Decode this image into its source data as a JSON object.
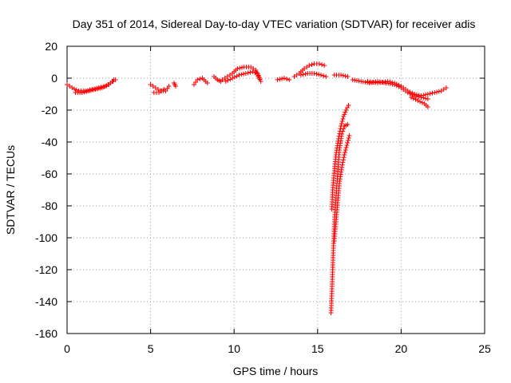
{
  "chart_data": {
    "type": "scatter",
    "title": "Day 351 of 2014, Sidereal Day-to-day VTEC variation (SDTVAR) for receiver adis",
    "xlabel": "GPS time / hours",
    "ylabel": "SDTVAR / TECUs",
    "xlim": [
      0,
      25
    ],
    "ylim": [
      -160,
      20
    ],
    "xticks": [
      "0",
      "5",
      "10",
      "15",
      "20",
      "25"
    ],
    "yticks": [
      "20",
      "0",
      "-20",
      "-40",
      "-60",
      "-80",
      "-100",
      "-120",
      "-140",
      "-160"
    ],
    "grid": true,
    "marker": "+",
    "series": [
      {
        "name": "SDTVAR",
        "color": "#ff0000",
        "segments": [
          {
            "points": [
              [
                0.0,
                -4
              ],
              [
                0.3,
                -6
              ],
              [
                0.7,
                -8
              ],
              [
                1.1,
                -8
              ],
              [
                1.5,
                -7
              ],
              [
                1.9,
                -6
              ],
              [
                2.3,
                -5
              ],
              [
                2.6,
                -3
              ],
              [
                2.9,
                -1
              ]
            ]
          },
          {
            "points": [
              [
                0.5,
                -9
              ],
              [
                0.9,
                -9
              ],
              [
                1.3,
                -8
              ],
              [
                1.7,
                -7
              ],
              [
                2.1,
                -6
              ],
              [
                2.5,
                -4
              ],
              [
                2.8,
                -1
              ]
            ]
          },
          {
            "points": [
              [
                5.0,
                -4
              ],
              [
                5.3,
                -6
              ],
              [
                5.6,
                -8
              ],
              [
                5.9,
                -8
              ],
              [
                6.1,
                -5
              ]
            ]
          },
          {
            "points": [
              [
                5.2,
                -9
              ],
              [
                5.5,
                -9
              ],
              [
                5.8,
                -7
              ]
            ]
          },
          {
            "points": [
              [
                6.4,
                -3
              ],
              [
                6.5,
                -5
              ]
            ]
          },
          {
            "points": [
              [
                7.6,
                -4
              ],
              [
                7.8,
                -1
              ],
              [
                8.1,
                0
              ],
              [
                8.4,
                -3
              ]
            ]
          },
          {
            "points": [
              [
                8.8,
                1
              ],
              [
                9.0,
                -1
              ],
              [
                9.2,
                -2
              ]
            ]
          },
          {
            "points": [
              [
                9.3,
                -1
              ],
              [
                9.6,
                1
              ],
              [
                9.9,
                3
              ],
              [
                10.2,
                6
              ],
              [
                10.6,
                7
              ],
              [
                11.0,
                7
              ],
              [
                11.3,
                5
              ],
              [
                11.5,
                0
              ]
            ]
          },
          {
            "points": [
              [
                9.5,
                -2
              ],
              [
                9.9,
                0
              ],
              [
                10.3,
                2
              ],
              [
                10.7,
                3
              ],
              [
                11.1,
                4
              ],
              [
                11.4,
                3
              ],
              [
                11.6,
                -2
              ]
            ]
          },
          {
            "points": [
              [
                12.6,
                -1
              ],
              [
                13.0,
                0
              ],
              [
                13.3,
                -1
              ]
            ]
          },
          {
            "points": [
              [
                13.6,
                1
              ],
              [
                13.9,
                3
              ],
              [
                14.2,
                6
              ],
              [
                14.5,
                8
              ],
              [
                14.8,
                9
              ],
              [
                15.1,
                9
              ],
              [
                15.4,
                8
              ]
            ]
          },
          {
            "points": [
              [
                14.0,
                2
              ],
              [
                14.4,
                3
              ],
              [
                14.8,
                3
              ],
              [
                15.2,
                2
              ],
              [
                15.5,
                1
              ]
            ]
          },
          {
            "points": [
              [
                16.0,
                2
              ],
              [
                16.4,
                2
              ],
              [
                16.8,
                1
              ]
            ]
          },
          {
            "points": [
              [
                17.1,
                -1
              ],
              [
                17.6,
                -2
              ],
              [
                18.1,
                -3
              ],
              [
                18.6,
                -2
              ],
              [
                19.1,
                -3
              ],
              [
                19.6,
                -4
              ],
              [
                20.0,
                -6
              ],
              [
                20.4,
                -9
              ],
              [
                20.8,
                -11
              ],
              [
                21.2,
                -12
              ],
              [
                21.6,
                -13
              ]
            ]
          },
          {
            "points": [
              [
                18.0,
                -2
              ],
              [
                18.6,
                -3
              ],
              [
                19.2,
                -2
              ],
              [
                19.6,
                -3
              ],
              [
                20.0,
                -5
              ],
              [
                20.4,
                -8
              ],
              [
                20.8,
                -10
              ],
              [
                21.2,
                -11
              ],
              [
                21.6,
                -10
              ],
              [
                22.0,
                -9
              ],
              [
                22.4,
                -8
              ],
              [
                22.7,
                -6
              ]
            ]
          },
          {
            "points": [
              [
                20.6,
                -12
              ],
              [
                21.0,
                -14
              ],
              [
                21.4,
                -16
              ],
              [
                21.6,
                -18
              ]
            ]
          },
          {
            "points": [
              [
                15.8,
                -147
              ],
              [
                15.85,
                -135
              ],
              [
                15.9,
                -120
              ],
              [
                15.95,
                -105
              ],
              [
                16.0,
                -90
              ],
              [
                16.1,
                -75
              ],
              [
                16.2,
                -60
              ],
              [
                16.3,
                -45
              ],
              [
                16.45,
                -35
              ],
              [
                16.6,
                -30
              ],
              [
                16.8,
                -29
              ]
            ]
          },
          {
            "points": [
              [
                15.85,
                -82
              ],
              [
                15.9,
                -70
              ],
              [
                16.0,
                -58
              ],
              [
                16.1,
                -48
              ],
              [
                16.25,
                -38
              ],
              [
                16.4,
                -30
              ],
              [
                16.55,
                -24
              ],
              [
                16.7,
                -20
              ],
              [
                16.85,
                -17
              ]
            ]
          },
          {
            "points": [
              [
                16.0,
                -102
              ],
              [
                16.1,
                -90
              ],
              [
                16.2,
                -78
              ],
              [
                16.3,
                -66
              ],
              [
                16.45,
                -56
              ],
              [
                16.6,
                -48
              ],
              [
                16.75,
                -42
              ],
              [
                16.9,
                -36
              ]
            ]
          }
        ]
      }
    ]
  }
}
